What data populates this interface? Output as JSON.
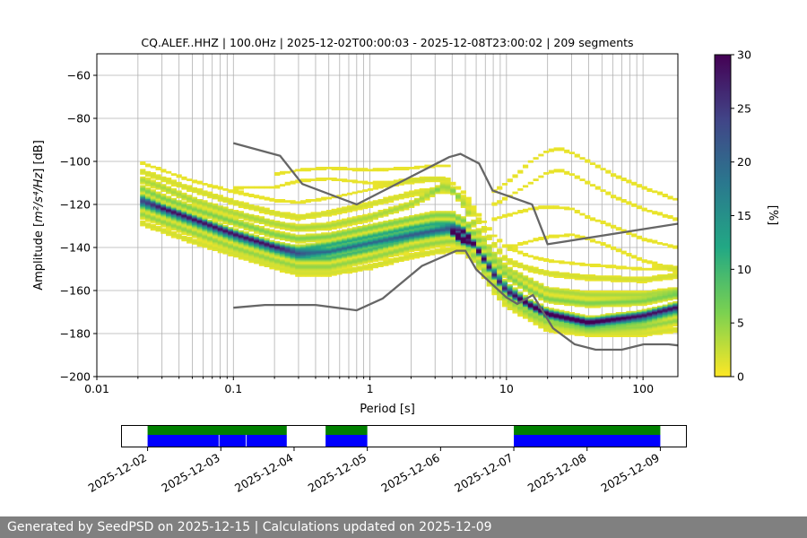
{
  "chart_data": [
    {
      "type": "heatmap",
      "title": "CQ.ALEF..HHZ | 100.0Hz | 2025-12-02T00:00:03 - 2025-12-08T23:00:02 | 209 segments",
      "xlabel": "Period [s]",
      "ylabel_prefix": "Amplitude [",
      "ylabel_math": "m²/s⁴/Hz",
      "ylabel_suffix": "] [dB]",
      "x_scale": "log",
      "xlim": [
        0.01,
        180
      ],
      "ylim": [
        -200,
        -50
      ],
      "x_ticks": [
        0.01,
        0.1,
        1,
        10,
        100
      ],
      "x_tick_labels": [
        "0.01",
        "0.1",
        "1",
        "10",
        "100"
      ],
      "y_ticks": [
        -200,
        -180,
        -160,
        -140,
        -120,
        -100,
        -80,
        -60
      ],
      "y_tick_labels": [
        "−200",
        "−180",
        "−160",
        "−140",
        "−120",
        "−100",
        "−80",
        "−60"
      ],
      "grid": "on",
      "colorbar": {
        "label": "[%]",
        "min": 0,
        "max": 30,
        "ticks": [
          0,
          5,
          10,
          15,
          20,
          25,
          30
        ],
        "tick_labels": [
          "0",
          "5",
          "10",
          "15",
          "20",
          "25",
          "30"
        ],
        "colormap": "viridis_r",
        "colors": [
          "#fde725",
          "#7ad151",
          "#22a884",
          "#2a788e",
          "#414487",
          "#440154"
        ]
      },
      "noise_models": [
        {
          "role": "high",
          "color": "#666666",
          "x": [
            0.1,
            0.22,
            0.32,
            0.8,
            3.8,
            4.6,
            6.3,
            7.9,
            15.4,
            20,
            354.8
          ],
          "y": [
            -91.5,
            -97.4,
            -110.5,
            -120,
            -98,
            -96.5,
            -101,
            -113.5,
            -120,
            -138.5,
            -126
          ]
        },
        {
          "role": "low",
          "color": "#666666",
          "x": [
            0.1,
            0.17,
            0.4,
            0.8,
            1.24,
            2.4,
            4.3,
            5,
            6,
            10,
            12,
            15.6,
            21.9,
            31.6,
            45,
            70,
            101,
            154,
            180
          ],
          "y": [
            -168,
            -166.7,
            -166.7,
            -169.2,
            -163.7,
            -148.6,
            -141.5,
            -141.5,
            -150.2,
            -163.2,
            -166.2,
            -162.1,
            -177.5,
            -185,
            -187.5,
            -187.5,
            -185,
            -185,
            -185.5
          ]
        }
      ],
      "psd_bands": [
        {
          "x": [
            0.02,
            0.03,
            0.05,
            0.1,
            0.2,
            0.3,
            0.5,
            1,
            2,
            3,
            4,
            5,
            6,
            8,
            10,
            15,
            20,
            40,
            100,
            180
          ],
          "y": [
            -118,
            -122,
            -127,
            -134,
            -140,
            -143,
            -142,
            -138,
            -134,
            -132,
            -131,
            -133,
            -140,
            -152,
            -160,
            -167,
            -171,
            -175,
            -172,
            -168
          ],
          "pct": 20
        },
        {
          "x": [
            0.02,
            0.03,
            0.05,
            0.1,
            0.2,
            0.3,
            0.5,
            1,
            2,
            3,
            4,
            5,
            6,
            8,
            10,
            15,
            20,
            40,
            100,
            180
          ],
          "y": [
            -116,
            -121,
            -126,
            -133,
            -139,
            -141,
            -139,
            -135,
            -131,
            -129,
            -129,
            -132,
            -139,
            -150,
            -158,
            -166,
            -170,
            -174,
            -171,
            -167
          ],
          "pct": 12
        },
        {
          "x": [
            0.02,
            0.03,
            0.05,
            0.1,
            0.2,
            0.3,
            0.5,
            1,
            2,
            3,
            4,
            5,
            6,
            8,
            10,
            15,
            20,
            40,
            100,
            180
          ],
          "y": [
            -120,
            -124,
            -129,
            -136,
            -142,
            -145,
            -145,
            -141,
            -136,
            -134,
            -133,
            -134,
            -141,
            -153,
            -161,
            -168,
            -172,
            -176,
            -174,
            -170
          ],
          "pct": 10
        },
        {
          "x": [
            0.02,
            0.03,
            0.05,
            0.1,
            0.2,
            0.3,
            0.5,
            1,
            2,
            3,
            4,
            5,
            6,
            8,
            10,
            15,
            20,
            40,
            100,
            180
          ],
          "y": [
            -112,
            -117,
            -122,
            -128,
            -134,
            -136,
            -135,
            -131,
            -127,
            -125,
            -125,
            -128,
            -135,
            -146,
            -153,
            -160,
            -164,
            -166,
            -165,
            -162
          ],
          "pct": 6
        },
        {
          "x": [
            0.02,
            0.03,
            0.05,
            0.1,
            0.2,
            0.3,
            0.5,
            1,
            2,
            3,
            4,
            5,
            6,
            8,
            10,
            15,
            20,
            40,
            100,
            180
          ],
          "y": [
            -124,
            -128,
            -133,
            -140,
            -146,
            -149,
            -149,
            -145,
            -140,
            -138,
            -137,
            -139,
            -145,
            -157,
            -164,
            -171,
            -175,
            -178,
            -177,
            -174
          ],
          "pct": 5
        },
        {
          "x": [
            0.02,
            0.03,
            0.05,
            0.1,
            0.2,
            0.3,
            0.5,
            1,
            2,
            3,
            3.5,
            4,
            5,
            6,
            8,
            10,
            15,
            20,
            40,
            100,
            180
          ],
          "y": [
            -108,
            -112,
            -118,
            -124,
            -129,
            -131,
            -130,
            -126,
            -120,
            -114,
            -111,
            -113,
            -121,
            -131,
            -143,
            -150,
            -156,
            -160,
            -162,
            -162,
            -160
          ],
          "pct": 4
        },
        {
          "x": [
            0.02,
            0.03,
            0.05,
            0.1,
            0.2,
            0.3,
            0.5,
            1,
            2,
            3,
            4,
            5,
            6,
            8,
            10,
            15,
            20,
            40,
            100,
            180
          ],
          "y": [
            -104,
            -108,
            -113,
            -119,
            -124,
            -126,
            -124,
            -120,
            -115,
            -113,
            -114,
            -118,
            -126,
            -138,
            -146,
            -150,
            -152,
            -154,
            -155,
            -153
          ],
          "pct": 2
        },
        {
          "x": [
            0.02,
            0.03,
            0.05,
            0.1,
            0.2,
            0.3,
            0.5,
            1,
            2,
            3,
            4,
            5,
            6,
            8,
            10,
            15,
            20,
            40,
            100,
            180
          ],
          "y": [
            -128,
            -132,
            -137,
            -143,
            -149,
            -152,
            -152,
            -149,
            -144,
            -142,
            -141,
            -142,
            -147,
            -160,
            -167,
            -173,
            -178,
            -180,
            -180,
            -178
          ],
          "pct": 2
        },
        {
          "x": [
            0.02,
            0.03,
            0.05,
            0.1,
            0.2,
            0.3,
            0.5,
            1,
            2,
            3,
            4,
            5,
            6,
            8,
            10,
            15,
            20,
            40,
            100,
            180
          ],
          "y": [
            -100,
            -104,
            -109,
            -114,
            -118,
            -119,
            -117,
            -113,
            -109,
            -108,
            -110,
            -115,
            -123,
            -134,
            -140,
            -144,
            -146,
            -148,
            -150,
            -150
          ],
          "pct": 1
        },
        {
          "x": [
            0.2,
            0.3,
            0.5,
            1,
            2,
            3,
            4
          ],
          "y": [
            -106,
            -104,
            -103,
            -104,
            -103,
            -102,
            -102
          ],
          "pct": 1
        },
        {
          "x": [
            0.1,
            0.2,
            0.3,
            0.5,
            1,
            2,
            3,
            4
          ],
          "y": [
            -112,
            -112,
            -109,
            -108,
            -110,
            -109,
            -108,
            -108
          ],
          "pct": 1
        },
        {
          "x": [
            8,
            10,
            12,
            15,
            20,
            25,
            30,
            40,
            60,
            100,
            180
          ],
          "y": [
            -114,
            -110,
            -106,
            -100,
            -95,
            -94,
            -96,
            -100,
            -106,
            -112,
            -118
          ],
          "pct": 1
        },
        {
          "x": [
            8,
            10,
            15,
            20,
            25,
            30,
            40,
            60,
            100,
            180
          ],
          "y": [
            -120,
            -117,
            -110,
            -105,
            -104,
            -106,
            -110,
            -116,
            -122,
            -127
          ],
          "pct": 1
        },
        {
          "x": [
            8,
            10,
            15,
            20,
            30,
            40,
            60,
            100,
            180
          ],
          "y": [
            -127,
            -125,
            -122,
            -121,
            -122,
            -126,
            -130,
            -136,
            -140
          ],
          "pct": 1
        },
        {
          "x": [
            10,
            15,
            20,
            30,
            40,
            60,
            100,
            180
          ],
          "y": [
            -140,
            -137,
            -135,
            -134,
            -136,
            -140,
            -146,
            -150
          ],
          "pct": 1
        }
      ],
      "psd_peaks": [
        {
          "x": [
            4.2,
            4.6,
            5.0,
            5.3
          ],
          "y": [
            -134,
            -136,
            -137,
            -138
          ],
          "pct": 30
        },
        {
          "x": [
            4.0,
            4.4,
            4.9
          ],
          "y": [
            -133,
            -135,
            -137
          ],
          "pct": 25
        }
      ]
    },
    {
      "type": "timeline",
      "x_tick_labels": [
        "2025-12-02",
        "2025-12-03",
        "2025-12-04",
        "2025-12-05",
        "2025-12-06",
        "2025-12-07",
        "2025-12-08",
        "2025-12-09"
      ],
      "xlim_days": [
        -0.35,
        7.35
      ],
      "available_color": "#0000ff",
      "selected_color": "#008000",
      "available": [
        [
          0.0,
          0.97
        ],
        [
          0.98,
          1.34
        ],
        [
          1.35,
          1.9
        ],
        [
          2.43,
          3.0
        ],
        [
          5.0,
          7.0
        ]
      ],
      "selected": [
        [
          0.0,
          1.9
        ],
        [
          2.43,
          3.0
        ],
        [
          5.0,
          7.0
        ]
      ]
    }
  ],
  "footer": "Generated by SeedPSD on 2025-12-15 | Calculations updated on 2025-12-09"
}
